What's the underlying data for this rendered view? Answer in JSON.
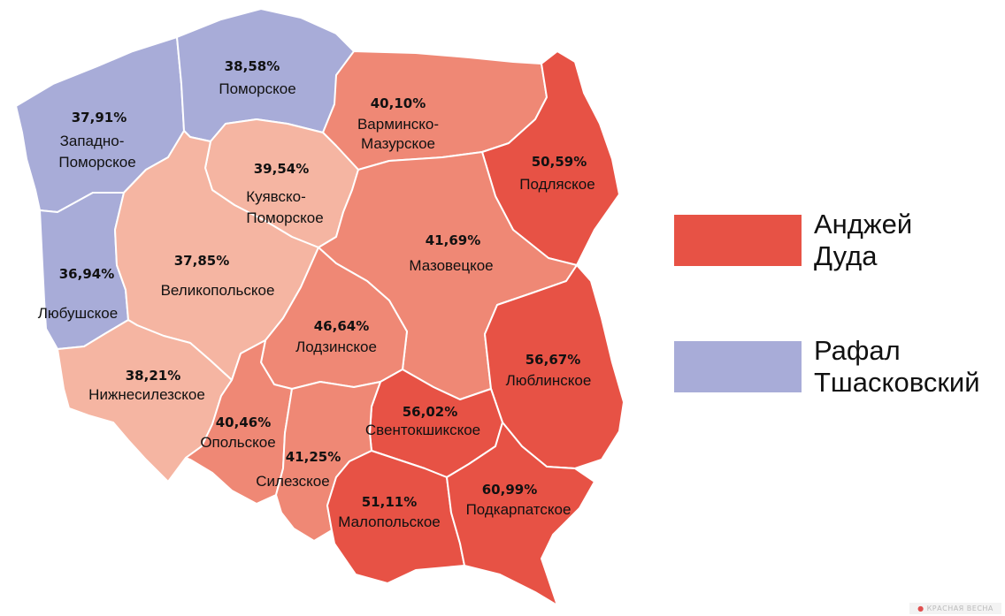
{
  "colors": {
    "duda_strong": "#e75245",
    "duda_medium": "#ef8875",
    "duda_light": "#f5b5a2",
    "trzaskowski": "#a8acd8",
    "border": "#ffffff"
  },
  "legend": [
    {
      "label": "Анджей Дуда",
      "color": "#e75245"
    },
    {
      "label": "Рафал Тшасковский",
      "color": "#a8acd8"
    }
  ],
  "regions": [
    {
      "id": "zachodniopomorskie",
      "name": "Западно-Поморское",
      "value": "37,91%",
      "color": "#a8acd8"
    },
    {
      "id": "pomorskie",
      "name": "Поморское",
      "value": "38,58%",
      "color": "#a8acd8"
    },
    {
      "id": "warminsko-mazurskie",
      "name": "Варминско-Мазурское",
      "value": "40,10%",
      "color": "#ef8875"
    },
    {
      "id": "podlaskie",
      "name": "Подляское",
      "value": "50,59%",
      "color": "#e75245"
    },
    {
      "id": "kujawsko-pomorskie",
      "name": "Куявско-Поморское",
      "value": "39,54%",
      "color": "#f5b5a2"
    },
    {
      "id": "lubuskie",
      "name": "Любушское",
      "value": "36,94%",
      "color": "#a8acd8"
    },
    {
      "id": "wielkopolskie",
      "name": "Великопольское",
      "value": "37,85%",
      "color": "#f5b5a2"
    },
    {
      "id": "mazowieckie",
      "name": "Мазовецкое",
      "value": "41,69%",
      "color": "#ef8875"
    },
    {
      "id": "lodzkie",
      "name": "Лодзинское",
      "value": "46,64%",
      "color": "#ef8875"
    },
    {
      "id": "lubelskie",
      "name": "Люблинское",
      "value": "56,67%",
      "color": "#e75245"
    },
    {
      "id": "dolnoslaskie",
      "name": "Нижнесилезское",
      "value": "38,21%",
      "color": "#f5b5a2"
    },
    {
      "id": "opolskie",
      "name": "Опольское",
      "value": "40,46%",
      "color": "#ef8875"
    },
    {
      "id": "swietokrzyskie",
      "name": "Свентокшикское",
      "value": "56,02%",
      "color": "#e75245"
    },
    {
      "id": "slaskie",
      "name": "Силезское",
      "value": "41,25%",
      "color": "#ef8875"
    },
    {
      "id": "malopolskie",
      "name": "Малопольское",
      "value": "51,11%",
      "color": "#e75245"
    },
    {
      "id": "podkarpackie",
      "name": "Подкарпатское",
      "value": "60,99%",
      "color": "#e75245"
    }
  ],
  "watermark": "КРАСНАЯ ВЕСНА"
}
